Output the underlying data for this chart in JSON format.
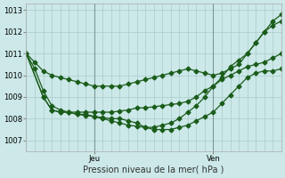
{
  "title": "",
  "xlabel": "Pression niveau de la mer( hPa )",
  "background_color": "#cce8e8",
  "grid_color": "#aacccc",
  "line_color": "#1a5c1a",
  "ylim": [
    1006.5,
    1013.3
  ],
  "xlim": [
    0,
    30
  ],
  "jeu_x": 8,
  "ven_x": 22,
  "series": {
    "s1": {
      "x": [
        0,
        1,
        2,
        3,
        4,
        5,
        6,
        7,
        8,
        9,
        10,
        11,
        12,
        13,
        14,
        15,
        16,
        17,
        18,
        19,
        20,
        21,
        22,
        23,
        24,
        25,
        26,
        27,
        28,
        29,
        30
      ],
      "y": [
        1011.0,
        1010.6,
        1010.2,
        1010.0,
        1009.9,
        1009.8,
        1009.7,
        1009.6,
        1009.5,
        1009.5,
        1009.5,
        1009.5,
        1009.6,
        1009.7,
        1009.8,
        1009.9,
        1010.0,
        1010.1,
        1010.2,
        1010.3,
        1010.2,
        1010.1,
        1010.0,
        1010.1,
        1010.3,
        1010.5,
        1011.0,
        1011.5,
        1012.0,
        1012.3,
        1012.5
      ]
    },
    "s2": {
      "x": [
        0,
        1,
        2,
        3,
        4,
        5,
        6,
        7,
        8,
        9,
        10,
        11,
        12,
        13,
        14,
        15,
        16,
        17,
        18,
        19,
        20,
        21,
        22,
        23,
        24,
        25,
        26,
        27,
        28,
        29,
        30
      ],
      "y": [
        1011.0,
        1010.3,
        1009.3,
        1008.6,
        1008.4,
        1008.3,
        1008.2,
        1008.2,
        1008.1,
        1008.0,
        1007.9,
        1007.8,
        1007.7,
        1007.65,
        1007.6,
        1007.6,
        1007.7,
        1007.8,
        1008.0,
        1008.3,
        1008.6,
        1009.0,
        1009.5,
        1009.9,
        1010.4,
        1010.7,
        1011.0,
        1011.5,
        1012.0,
        1012.5,
        1012.8
      ]
    },
    "s3": {
      "x": [
        0,
        2,
        3,
        4,
        5,
        6,
        7,
        8,
        9,
        10,
        11,
        12,
        13,
        14,
        15,
        16,
        17,
        18,
        19,
        20,
        21,
        22,
        23,
        24,
        25,
        26,
        27,
        28,
        29,
        30
      ],
      "y": [
        1011.0,
        1009.0,
        1008.4,
        1008.3,
        1008.3,
        1008.2,
        1008.15,
        1008.1,
        1008.05,
        1008.0,
        1008.0,
        1007.9,
        1007.8,
        1007.6,
        1007.5,
        1007.5,
        1007.5,
        1007.6,
        1007.7,
        1007.9,
        1008.1,
        1008.3,
        1008.7,
        1009.1,
        1009.5,
        1009.9,
        1010.1,
        1010.2,
        1010.2,
        1010.3
      ]
    },
    "s4": {
      "x": [
        0,
        2,
        3,
        4,
        5,
        6,
        7,
        8,
        9,
        10,
        11,
        12,
        13,
        14,
        15,
        16,
        17,
        18,
        19,
        20,
        21,
        22,
        23,
        24,
        25,
        26,
        27,
        28,
        29,
        30
      ],
      "y": [
        1011.0,
        1009.0,
        1008.4,
        1008.3,
        1008.3,
        1008.3,
        1008.3,
        1008.3,
        1008.3,
        1008.3,
        1008.35,
        1008.4,
        1008.5,
        1008.5,
        1008.55,
        1008.6,
        1008.65,
        1008.7,
        1008.8,
        1009.0,
        1009.3,
        1009.5,
        1009.8,
        1010.0,
        1010.2,
        1010.4,
        1010.5,
        1010.6,
        1010.8,
        1011.0
      ]
    }
  },
  "marker": "D",
  "marker_size": 2.5,
  "line_width": 0.9
}
